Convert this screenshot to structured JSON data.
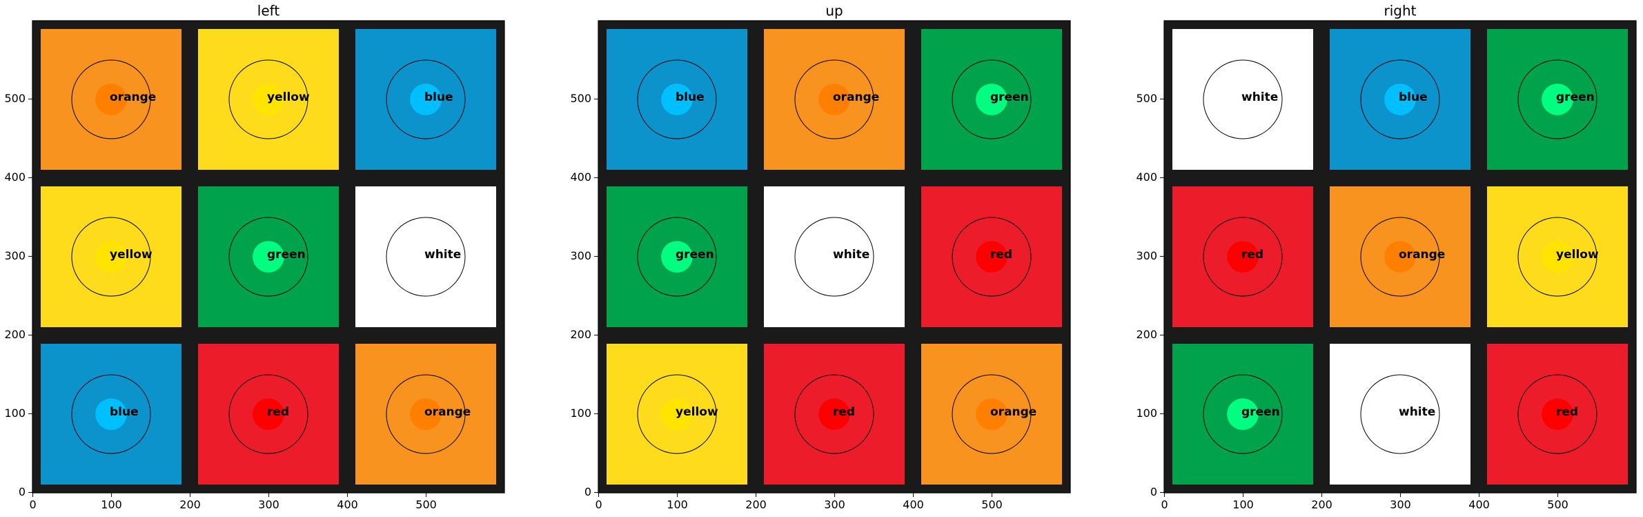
{
  "chart_data": [
    {
      "type": "image",
      "title": "left",
      "labels": [
        [
          "orange",
          "yellow",
          "blue"
        ],
        [
          "yellow",
          "green",
          "white"
        ],
        [
          "blue",
          "red",
          "orange"
        ]
      ],
      "xlim": [
        -0.5,
        599.5
      ],
      "ylim": [
        599.5,
        -0.5
      ],
      "xticks": [
        0,
        100,
        200,
        300,
        400,
        500
      ],
      "yticks": [
        0,
        100,
        200,
        300,
        400,
        500
      ]
    },
    {
      "type": "image",
      "title": "up",
      "labels": [
        [
          "blue",
          "orange",
          "green"
        ],
        [
          "green",
          "white",
          "red"
        ],
        [
          "yellow",
          "red",
          "orange"
        ]
      ],
      "xlim": [
        -0.5,
        599.5
      ],
      "ylim": [
        599.5,
        -0.5
      ],
      "xticks": [
        0,
        100,
        200,
        300,
        400,
        500
      ],
      "yticks": [
        0,
        100,
        200,
        300,
        400,
        500
      ]
    },
    {
      "type": "image",
      "title": "right",
      "labels": [
        [
          "white",
          "blue",
          "green"
        ],
        [
          "red",
          "orange",
          "yellow"
        ],
        [
          "green",
          "white",
          "red"
        ]
      ],
      "xlim": [
        -0.5,
        599.5
      ],
      "ylim": [
        599.5,
        -0.5
      ],
      "xticks": [
        0,
        100,
        200,
        300,
        400,
        500
      ],
      "yticks": [
        0,
        100,
        200,
        300,
        400,
        500
      ]
    }
  ],
  "palette": {
    "orange": {
      "sticker": "#f7931e",
      "dot": "#ff8000"
    },
    "yellow": {
      "sticker": "#fedc1b",
      "dot": "#ffe400"
    },
    "blue": {
      "sticker": "#0c93cc",
      "dot": "#00bfff"
    },
    "green": {
      "sticker": "#00a24c",
      "dot": "#00ff80"
    },
    "white": {
      "sticker": "#ffffff",
      "dot": "#ffffff"
    },
    "red": {
      "sticker": "#ec1c2b",
      "dot": "#ff0000"
    }
  }
}
